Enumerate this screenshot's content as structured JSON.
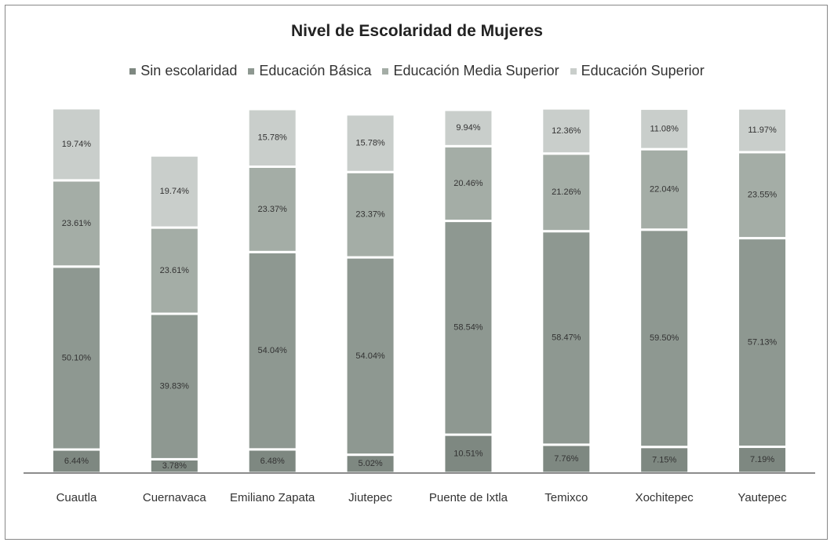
{
  "chart_data": {
    "type": "stacked_bar",
    "title": "Nivel de Escolaridad de Mujeres",
    "categories": [
      "Cuautla",
      "Cuernavaca",
      "Emiliano Zapata",
      "Jiutepec",
      "Puente de Ixtla",
      "Temixco",
      "Xochitepec",
      "Yautepec"
    ],
    "legend": "top",
    "series": [
      {
        "name": "Sin escolaridad",
        "color": "#7e8881",
        "values": [
          6.44,
          3.78,
          6.48,
          5.02,
          10.51,
          7.76,
          7.15,
          7.19
        ],
        "value_labels": [
          "6.44%",
          "3.78%",
          "6.48%",
          "5.02%",
          "10.51%",
          "7.76%",
          "7.15%",
          "7.19%"
        ]
      },
      {
        "name": "Educación Básica",
        "color": "#8e9891",
        "values": [
          50.1,
          39.83,
          54.04,
          54.04,
          58.54,
          58.47,
          59.5,
          57.13
        ],
        "value_labels": [
          "50.10%",
          "39.83%",
          "54.04%",
          "54.04%",
          "58.54%",
          "58.47%",
          "59.50%",
          "57.13%"
        ]
      },
      {
        "name": "Educación Media Superior",
        "color": "#a4ada6",
        "values": [
          23.61,
          23.61,
          23.37,
          23.37,
          20.46,
          21.26,
          22.04,
          23.55
        ],
        "value_labels": [
          "23.61%",
          "23.61%",
          "23.37%",
          "23.37%",
          "20.46%",
          "21.26%",
          "22.04%",
          "23.55%"
        ]
      },
      {
        "name": "Educación Superior",
        "color": "#c9cecb",
        "values": [
          19.74,
          19.74,
          15.78,
          15.78,
          9.94,
          12.36,
          11.08,
          11.97
        ],
        "value_labels": [
          "19.74%",
          "19.74%",
          "15.78%",
          "15.78%",
          "9.94%",
          "12.36%",
          "11.08%",
          "11.97%"
        ]
      }
    ]
  }
}
